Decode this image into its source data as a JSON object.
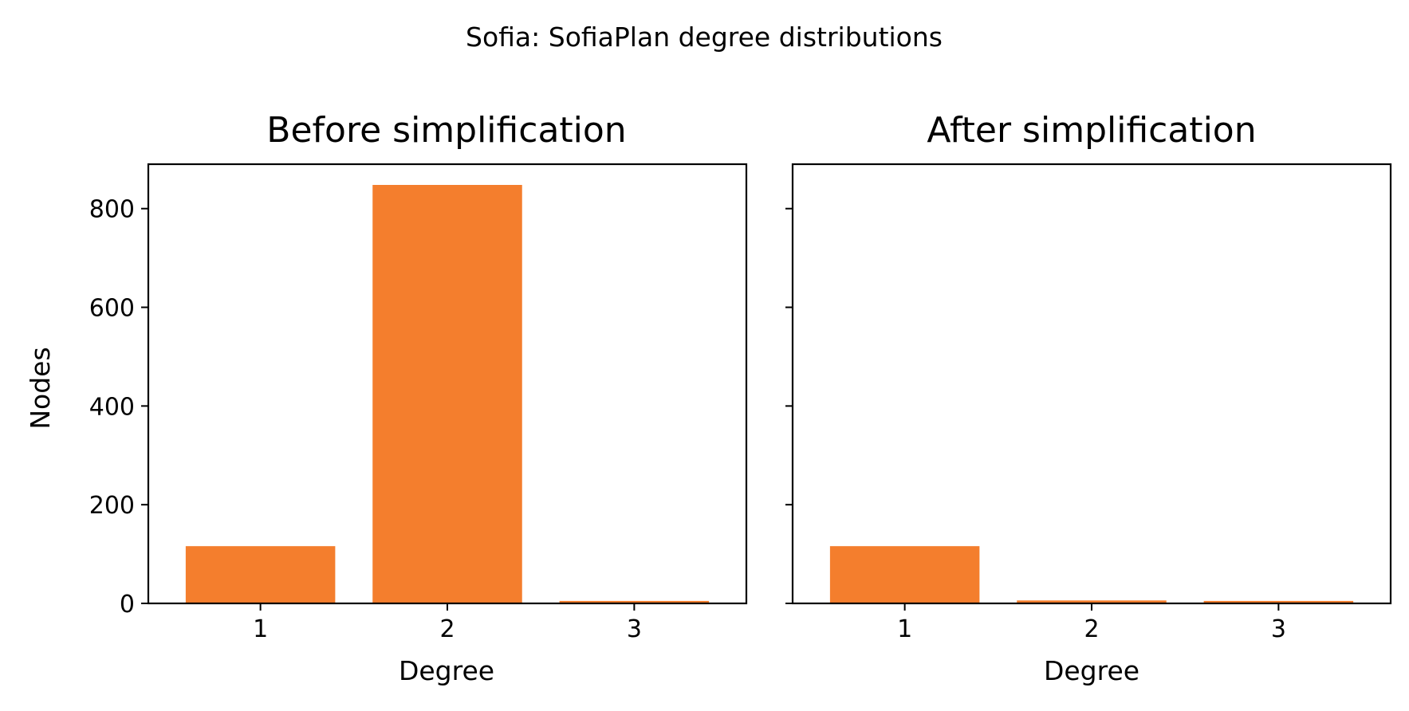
{
  "suptitle": "Sofia: SofiaPlan degree distributions",
  "bar_color": "#f47e2d",
  "chart_data": [
    {
      "type": "bar",
      "title": "Before simplification",
      "xlabel": "Degree",
      "ylabel": "Nodes",
      "categories": [
        "1",
        "2",
        "3"
      ],
      "values": [
        116,
        848,
        5
      ],
      "ylim": [
        0,
        890
      ],
      "yticks": [
        0,
        200,
        400,
        600,
        800
      ],
      "grid": false
    },
    {
      "type": "bar",
      "title": "After simplification",
      "xlabel": "Degree",
      "ylabel": "",
      "categories": [
        "1",
        "2",
        "3"
      ],
      "values": [
        116,
        6,
        5
      ],
      "ylim": [
        0,
        890
      ],
      "yticks": [
        0,
        200,
        400,
        600,
        800
      ],
      "ytick_labels_shown": false,
      "grid": false
    }
  ]
}
